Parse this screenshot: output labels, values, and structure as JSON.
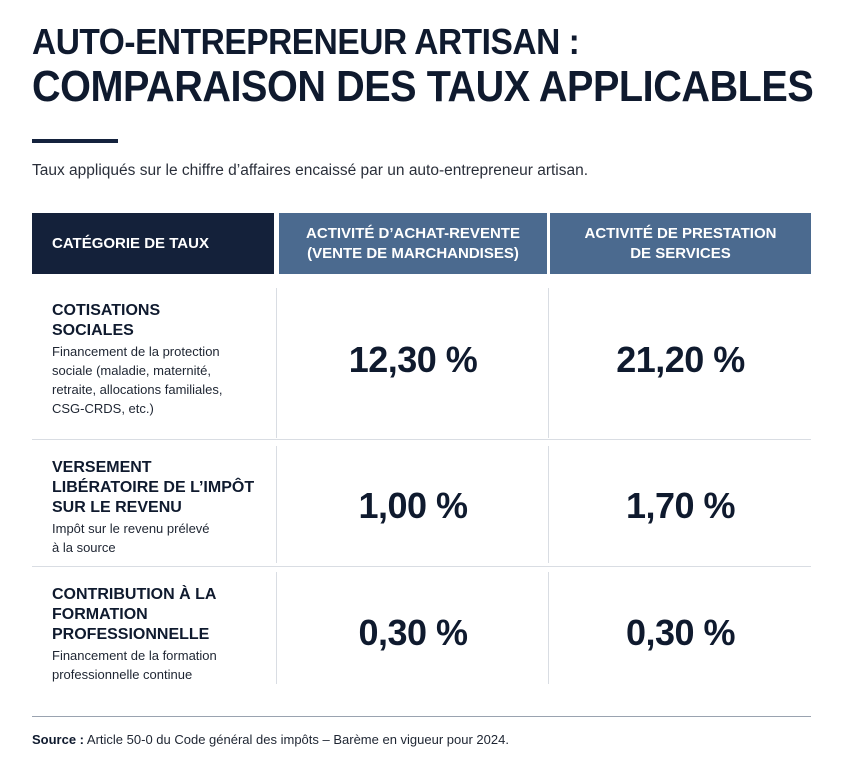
{
  "header": {
    "title_line1": "AUTO-ENTREPRENEUR ARTISAN :",
    "title_line2": "COMPARAISON DES TAUX APPLICABLES",
    "subtitle": "Taux appliqués sur le chiffre d’affaires encaissé par un auto-entrepreneur artisan."
  },
  "table": {
    "columns": {
      "category": "CATÉGORIE DE TAUX",
      "col2_line1": "ACTIVITÉ D’ACHAT-REVENTE",
      "col2_line2": "(VENTE DE MARCHANDISES)",
      "col3_line1": "ACTIVITÉ DE PRESTATION",
      "col3_line2": "DE SERVICES"
    },
    "rows": [
      {
        "title_lines": [
          "COTISATIONS",
          "SOCIALES"
        ],
        "desc_lines": [
          "Financement de la protection",
          "sociale (maladie, maternité,",
          "retraite, allocations familiales,",
          "CSG-CRDS, etc.)"
        ],
        "achat_revente": "12,30 %",
        "prestation": "21,20 %"
      },
      {
        "title_lines": [
          "VERSEMENT",
          "LIBÉRATOIRE DE L’IMPÔT",
          "SUR LE REVENU"
        ],
        "desc_lines": [
          "Impôt sur le revenu prélevé",
          "à la source"
        ],
        "achat_revente": "1,00 %",
        "prestation": "1,70 %"
      },
      {
        "title_lines": [
          "CONTRIBUTION À LA",
          "FORMATION",
          "PROFESSIONNELLE"
        ],
        "desc_lines": [
          "Financement de la formation",
          "professionnelle continue"
        ],
        "achat_revente": "0,30 %",
        "prestation": "0,30 %"
      }
    ]
  },
  "footer": {
    "source_label": "Source :",
    "source_text": "Article 50-0 du Code général des impôts – Barème en vigueur pour 2024."
  },
  "colors": {
    "navy": "#14213a",
    "slate_blue": "#4b6a8f",
    "text_dark": "#0f1a2e"
  }
}
